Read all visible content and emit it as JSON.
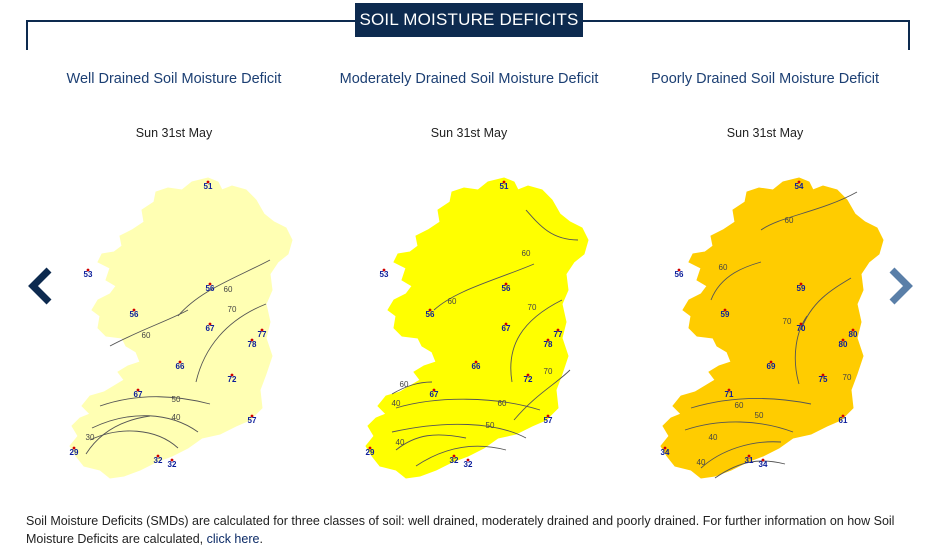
{
  "header": {
    "title": "SOIL MOISTURE DEFICITS"
  },
  "panels": [
    {
      "title": "Well Drained Soil Moisture Deficit",
      "date": "Sun 31st May",
      "fill": "#ffffb3",
      "stations": [
        "51",
        "53",
        "56",
        "56",
        "67",
        "77",
        "78",
        "66",
        "72",
        "67",
        "57",
        "29",
        "32",
        "32"
      ],
      "contours": [
        "60",
        "70",
        "60",
        "50",
        "40",
        "30"
      ]
    },
    {
      "title": "Moderately Drained Soil Moisture Deficit",
      "date": "Sun 31st May",
      "fill": "#ffff00",
      "stations": [
        "51",
        "53",
        "56",
        "56",
        "67",
        "77",
        "78",
        "66",
        "72",
        "67",
        "57",
        "29",
        "32",
        "32"
      ],
      "contours": [
        "60",
        "60",
        "70",
        "70",
        "60",
        "50",
        "60",
        "40",
        "40"
      ]
    },
    {
      "title": "Poorly Drained Soil Moisture Deficit",
      "date": "Sun 31st May",
      "fill": "#ffcc00",
      "stations": [
        "54",
        "56",
        "59",
        "59",
        "70",
        "80",
        "80",
        "69",
        "75",
        "71",
        "61",
        "34",
        "31",
        "34"
      ],
      "contours": [
        "60",
        "60",
        "70",
        "70",
        "60",
        "50",
        "40",
        "40"
      ]
    }
  ],
  "navigation": {
    "prev": "chevron-left-icon",
    "next": "chevron-right-icon",
    "prev_color": "#0d2a4f",
    "next_color": "#5a7fa8"
  },
  "footer": {
    "text": "Soil Moisture Deficits (SMDs) are calculated for three classes of soil: well drained, moderately drained and poorly drained. For further information on how Soil Moisture Deficits are calculated, ",
    "link": "click here",
    "end": "."
  }
}
